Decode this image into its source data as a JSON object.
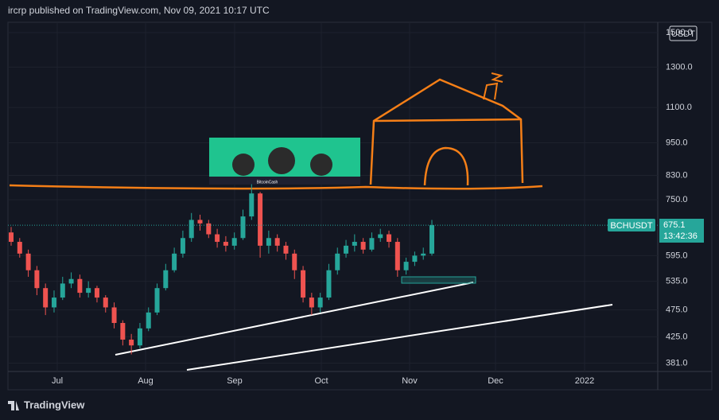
{
  "header": "ircrp published on TradingView.com, Nov 09, 2021 10:17 UTC",
  "currency": "USDT",
  "symbol": "BCHUSDT",
  "countdown": "13:42:36",
  "brand": "TradingView",
  "banner_text": "BitcoinCash",
  "chart_data": {
    "type": "candlestick",
    "log_scale": true,
    "grid": true,
    "up_color": "#26a69a",
    "down_color": "#ef5350",
    "ylim": [
      368,
      1566
    ],
    "yticks": [
      {
        "value": 381,
        "label": "381.0"
      },
      {
        "value": 425,
        "label": "425.0"
      },
      {
        "value": 475,
        "label": "475.0"
      },
      {
        "value": 535,
        "label": "535.0"
      },
      {
        "value": 595,
        "label": "595.0"
      },
      {
        "value": 750,
        "label": "750.0"
      },
      {
        "value": 830,
        "label": "830.0"
      },
      {
        "value": 950,
        "label": "950.0"
      },
      {
        "value": 1100,
        "label": "1100.0"
      },
      {
        "value": 1300,
        "label": "1300.0"
      },
      {
        "value": 1500,
        "label": "1500.0"
      }
    ],
    "x_labels": [
      "Jul",
      "Aug",
      "Sep",
      "Oct",
      "Nov",
      "Dec",
      "2022"
    ],
    "open": [
      655,
      630,
      600,
      560,
      520,
      480,
      500,
      530,
      540,
      510,
      520,
      500,
      480,
      450,
      420,
      410,
      440,
      470,
      520,
      560,
      600,
      640,
      690,
      680,
      650,
      630,
      620,
      640,
      700,
      770,
      620,
      640,
      620,
      600,
      560,
      500,
      480,
      500,
      560,
      600,
      620,
      630,
      610,
      640,
      650,
      630,
      560,
      580,
      595,
      600
    ],
    "high": [
      670,
      640,
      610,
      570,
      530,
      515,
      545,
      555,
      550,
      535,
      525,
      505,
      490,
      455,
      430,
      450,
      480,
      530,
      575,
      615,
      660,
      710,
      705,
      690,
      665,
      645,
      655,
      720,
      800,
      775,
      660,
      650,
      630,
      610,
      570,
      510,
      510,
      575,
      615,
      635,
      650,
      640,
      655,
      665,
      660,
      640,
      590,
      605,
      615,
      690
    ],
    "low": [
      620,
      590,
      545,
      505,
      465,
      470,
      495,
      520,
      500,
      500,
      490,
      470,
      440,
      410,
      395,
      405,
      435,
      465,
      515,
      555,
      590,
      630,
      660,
      640,
      615,
      605,
      610,
      635,
      690,
      590,
      600,
      605,
      585,
      540,
      490,
      465,
      470,
      495,
      550,
      590,
      605,
      600,
      605,
      630,
      615,
      545,
      550,
      570,
      585,
      595
    ],
    "close": [
      630,
      600,
      560,
      520,
      480,
      500,
      530,
      540,
      510,
      520,
      500,
      480,
      450,
      420,
      410,
      440,
      470,
      520,
      560,
      600,
      640,
      690,
      680,
      650,
      630,
      620,
      640,
      700,
      770,
      620,
      640,
      620,
      600,
      560,
      500,
      480,
      500,
      560,
      600,
      620,
      630,
      610,
      640,
      650,
      630,
      560,
      580,
      595,
      600,
      675.1
    ]
  }
}
